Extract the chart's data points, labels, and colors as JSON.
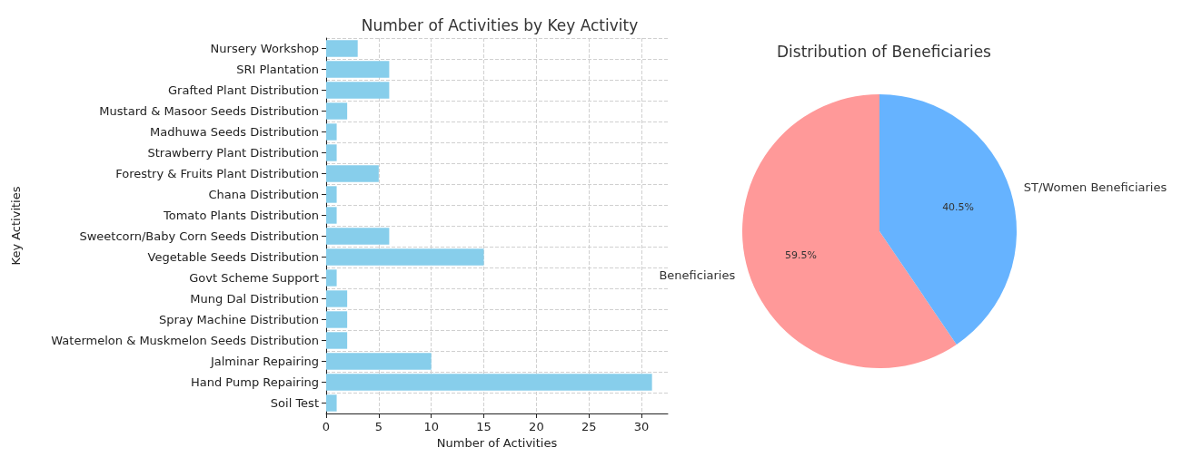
{
  "chart_data": [
    {
      "type": "bar",
      "orientation": "horizontal",
      "title": "Number of Activities by Key Activity",
      "xlabel": "Number of Activities",
      "ylabel": "Key Activities",
      "categories": [
        "Nursery Workshop",
        "SRI Plantation",
        "Grafted Plant Distribution",
        "Mustard & Masoor Seeds Distribution",
        "Madhuwa Seeds Distribution",
        "Strawberry Plant Distribution",
        "Forestry & Fruits Plant Distribution",
        "Chana Distribution",
        "Tomato Plants Distribution",
        "Sweetcorn/Baby Corn Seeds Distribution",
        "Vegetable Seeds Distribution",
        "Govt Scheme Support",
        "Mung Dal Distribution",
        "Spray Machine Distribution",
        "Watermelon & Muskmelon Seeds Distribution",
        "Jalminar Repairing",
        "Hand Pump Repairing",
        "Soil Test"
      ],
      "values": [
        3,
        6,
        6,
        2,
        1,
        1,
        5,
        1,
        1,
        6,
        15,
        1,
        2,
        2,
        2,
        10,
        31,
        1
      ],
      "color": "#87ceeb",
      "xlim": [
        0,
        32.5
      ],
      "xticks": [
        0,
        5,
        10,
        15,
        20,
        25,
        30
      ],
      "grid": true
    },
    {
      "type": "pie",
      "title": "Distribution of Beneficiaries",
      "categories": [
        "Beneficiaries",
        "ST/Women Beneficiaries"
      ],
      "values": [
        59.5,
        40.5
      ],
      "colors": [
        "#ff9999",
        "#66b3ff"
      ],
      "value_labels": [
        "59.5%",
        "40.5%"
      ]
    }
  ]
}
